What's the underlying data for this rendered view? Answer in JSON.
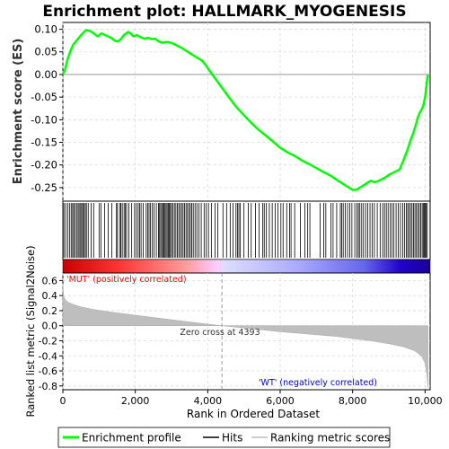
{
  "chart_data": {
    "type": "line",
    "title": "Enrichment plot: HALLMARK_MYOGENESIS",
    "top_panel": {
      "ylabel": "Enrichment score (ES)",
      "ylim": [
        -0.28,
        0.115
      ],
      "yticks": [
        "0.10",
        "0.05",
        "0.00",
        "-0.05",
        "-0.10",
        "-0.15",
        "-0.20",
        "-0.25"
      ],
      "ytick_values": [
        0.1,
        0.05,
        0.0,
        -0.05,
        -0.1,
        -0.15,
        -0.2,
        -0.25
      ],
      "grid": true,
      "series": [
        {
          "name": "Enrichment profile",
          "color": "#00ff00",
          "x": [
            0,
            60,
            120,
            200,
            280,
            380,
            480,
            560,
            640,
            720,
            800,
            900,
            960,
            1000,
            1060,
            1150,
            1250,
            1350,
            1450,
            1520,
            1600,
            1700,
            1800,
            1880,
            1950,
            2050,
            2150,
            2250,
            2350,
            2450,
            2550,
            2650,
            2750,
            2850,
            2950,
            3050,
            3150,
            3250,
            3350,
            3450,
            3550,
            3650,
            3750,
            3850,
            3950,
            4050,
            4200,
            4400,
            4600,
            4800,
            5000,
            5200,
            5400,
            5600,
            5800,
            6000,
            6200,
            6400,
            6600,
            6800,
            7000,
            7200,
            7400,
            7600,
            7800,
            8000,
            8100,
            8200,
            8300,
            8400,
            8500,
            8600,
            8700,
            8800,
            8900,
            9000,
            9100,
            9200,
            9300,
            9350,
            9400,
            9450,
            9500,
            9550,
            9600,
            9650,
            9700,
            9750,
            9800,
            9850,
            9900,
            9950,
            10000,
            10030,
            10060,
            10080
          ],
          "y": [
            0.0,
            0.01,
            0.03,
            0.05,
            0.065,
            0.075,
            0.085,
            0.092,
            0.098,
            0.097,
            0.094,
            0.088,
            0.084,
            0.086,
            0.091,
            0.088,
            0.084,
            0.08,
            0.074,
            0.073,
            0.078,
            0.088,
            0.094,
            0.09,
            0.084,
            0.087,
            0.082,
            0.079,
            0.081,
            0.078,
            0.079,
            0.073,
            0.07,
            0.072,
            0.071,
            0.068,
            0.064,
            0.06,
            0.055,
            0.05,
            0.045,
            0.04,
            0.035,
            0.03,
            0.02,
            0.008,
            -0.008,
            -0.03,
            -0.052,
            -0.073,
            -0.09,
            -0.107,
            -0.122,
            -0.135,
            -0.148,
            -0.162,
            -0.172,
            -0.18,
            -0.19,
            -0.198,
            -0.207,
            -0.216,
            -0.224,
            -0.235,
            -0.245,
            -0.255,
            -0.255,
            -0.25,
            -0.245,
            -0.24,
            -0.235,
            -0.238,
            -0.236,
            -0.232,
            -0.228,
            -0.222,
            -0.218,
            -0.214,
            -0.21,
            -0.2,
            -0.19,
            -0.18,
            -0.17,
            -0.158,
            -0.145,
            -0.135,
            -0.123,
            -0.11,
            -0.095,
            -0.085,
            -0.078,
            -0.07,
            -0.05,
            -0.03,
            -0.01,
            0.0
          ]
        }
      ]
    },
    "hits": {
      "name": "Hits",
      "positions": [
        30,
        80,
        140,
        190,
        230,
        270,
        300,
        340,
        380,
        420,
        450,
        490,
        520,
        550,
        580,
        620,
        650,
        700,
        780,
        850,
        1000,
        1050,
        1150,
        1250,
        1350,
        1480,
        1510,
        1580,
        1600,
        1640,
        1690,
        1720,
        1760,
        1820,
        1900,
        1980,
        2030,
        2080,
        2120,
        2160,
        2220,
        2300,
        2340,
        2380,
        2420,
        2470,
        2520,
        2580,
        2640,
        2660,
        2700,
        2730,
        2760,
        2790,
        2820,
        2850,
        2880,
        2910,
        2940,
        2970,
        3000,
        3040,
        3080,
        3120,
        3160,
        3200,
        3240,
        3280,
        3320,
        3360,
        3400,
        3440,
        3480,
        3520,
        3560,
        3600,
        3650,
        3700,
        3760,
        3820,
        3900,
        3960,
        4020,
        4100,
        4200,
        4280,
        4420,
        4520,
        4620,
        4700,
        4780,
        4820,
        4860,
        4900,
        5000,
        5120,
        5200,
        5320,
        5420,
        5520,
        5560,
        5620,
        5700,
        5780,
        5860,
        5940,
        6020,
        6080,
        6180,
        6260,
        6300,
        6400,
        6560,
        6680,
        6760,
        6820,
        7100,
        7200,
        7260,
        7400,
        7460,
        7560,
        7660,
        7700,
        7740,
        7800,
        7860,
        7920,
        7980,
        8060,
        8120,
        8160,
        8200,
        8250,
        8300,
        8360,
        8420,
        8480,
        8540,
        8600,
        8680,
        8760,
        8830,
        8880,
        8930,
        8980,
        9040,
        9090,
        9140,
        9200,
        9260,
        9320,
        9380,
        9430,
        9480,
        9520,
        9560,
        9600,
        9640,
        9680,
        9720,
        9760,
        9800,
        9840,
        9880,
        9920,
        9950,
        9980,
        10000,
        10030,
        10060
      ]
    },
    "bottom_panel": {
      "ylabel": "Ranked list metric (Signal2Noise)",
      "xlabel": "Rank in Ordered Dataset",
      "ylim": [
        -0.85,
        0.7
      ],
      "yticks": [
        "0.6",
        "0.4",
        "0.2",
        "0.0",
        "-0.2",
        "-0.4",
        "-0.6",
        "-0.8"
      ],
      "ytick_values": [
        0.6,
        0.4,
        0.2,
        0.0,
        -0.2,
        -0.4,
        -0.6,
        -0.8
      ],
      "xlim": [
        0,
        10140
      ],
      "xticks": [
        "0",
        "2,000",
        "4,000",
        "6,000",
        "8,000",
        "10,000"
      ],
      "xtick_values": [
        0,
        2000,
        4000,
        6000,
        8000,
        10000
      ],
      "metric_x": [
        0,
        20,
        60,
        150,
        300,
        500,
        800,
        1200,
        1600,
        2000,
        2500,
        3000,
        3500,
        4000,
        4393,
        5000,
        5500,
        6000,
        6500,
        7000,
        7500,
        8000,
        8500,
        9000,
        9400,
        9700,
        9900,
        10000,
        10050,
        10080
      ],
      "metric_y": [
        0.55,
        0.4,
        0.35,
        0.31,
        0.28,
        0.25,
        0.22,
        0.19,
        0.165,
        0.14,
        0.11,
        0.08,
        0.05,
        0.02,
        0.0,
        -0.03,
        -0.055,
        -0.08,
        -0.1,
        -0.12,
        -0.14,
        -0.17,
        -0.2,
        -0.24,
        -0.28,
        -0.33,
        -0.4,
        -0.5,
        -0.65,
        -0.82
      ],
      "zero_cross_label": "Zero cross at 4393",
      "zero_cross": 4393,
      "pos_label": "'MUT' (positively correlated)",
      "neg_label": "'WT' (negatively correlated)"
    },
    "legend": [
      "Enrichment profile",
      "Hits",
      "Ranking metric scores"
    ],
    "legend_position": "bottom",
    "colors": {
      "profile": "#00ff00",
      "hits": "#000000",
      "metric": "#bebebe",
      "pos_label": "#ff0000",
      "neg_label": "#0000cc",
      "grid": "#d9d9d9"
    }
  }
}
